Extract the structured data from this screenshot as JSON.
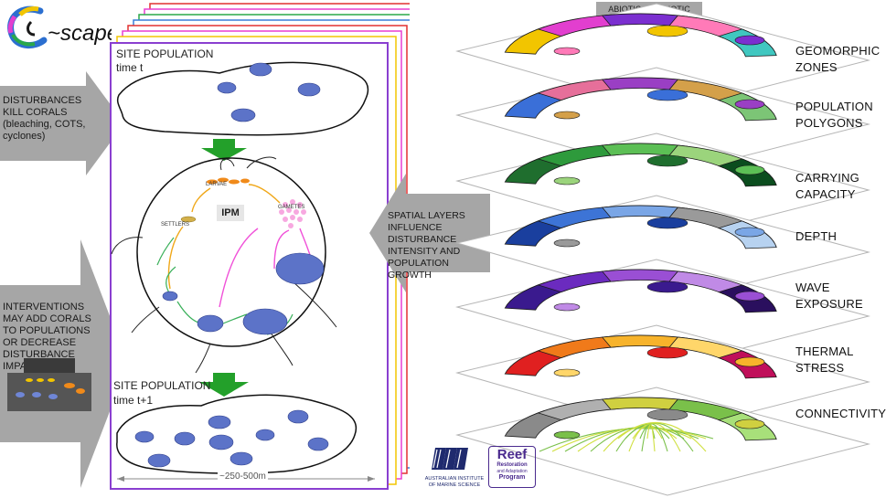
{
  "logo": {
    "text": "~scape"
  },
  "left_arrows": {
    "disturbances": "DISTURBANCES KILL CORALS (bleaching, COTS, cyclones)",
    "interventions": "INTERVENTIONS MAY ADD CORALS TO POPULATIONS OR DECREASE DISTURBANCE IMPACT"
  },
  "site_top": {
    "title": "SITE POPULATION",
    "time": "time t"
  },
  "site_bottom": {
    "title": "SITE POPULATION",
    "time": "time t+1"
  },
  "cycle": {
    "model": "IPM",
    "larvae": "LARVAE",
    "gametes": "GAMETES",
    "settlers": "SETTLERS"
  },
  "scale": {
    "label": "~250-500m"
  },
  "spatial_arrow": {
    "text": "SPATIAL LAYERS INFLUENCE DISTURBANCE INTENSITY AND POPULATION GROWTH"
  },
  "layers_header": {
    "text": "ABIOTIC AND BIOTIC SPATIAL LAYERS"
  },
  "layers": [
    {
      "line1": "GEOMORPHIC",
      "line2": "ZONES"
    },
    {
      "line1": "POPULATION",
      "line2": "POLYGONS"
    },
    {
      "line1": "CARRYING",
      "line2": "CAPACITY"
    },
    {
      "line1": "DEPTH",
      "line2": ""
    },
    {
      "line1": "WAVE",
      "line2": "EXPOSURE"
    },
    {
      "line1": "THERMAL",
      "line2": "STRESS"
    },
    {
      "line1": "CONNECTIVITY",
      "line2": ""
    }
  ],
  "layer_palettes": [
    [
      "#f2c500",
      "#e23fcf",
      "#7b2fd0",
      "#ff7ab8",
      "#40c7c0"
    ],
    [
      "#3a6fd8",
      "#e66f9a",
      "#9a3fc4",
      "#d4a04a",
      "#7cc576"
    ],
    [
      "#1f6e2e",
      "#2e9a3c",
      "#5cbf55",
      "#9bd47c",
      "#0b4d1e"
    ],
    [
      "#1a3f9e",
      "#3d74d6",
      "#7aa6e6",
      "#9a9a9a",
      "#b7d2f0"
    ],
    [
      "#3a1a8e",
      "#6b2bbf",
      "#9a4fd4",
      "#c08ae6",
      "#2a0f5e"
    ],
    [
      "#e02020",
      "#f07a1a",
      "#f7b32b",
      "#ffd66a",
      "#c00f5a"
    ],
    [
      "#8a8a8a",
      "#b0b0b0",
      "#d0d040",
      "#7ac04a",
      "#a8e07a"
    ]
  ],
  "stack_colors": [
    "#f2c500",
    "#e83fd2",
    "#e23030",
    "#3a7fd8",
    "#2aa84a",
    "#e83fd2",
    "#e23030"
  ],
  "logos": {
    "aims_line1": "AUSTRALIAN INSTITUTE",
    "aims_line2": "OF MARINE SCIENCE",
    "reef_title": "Reef",
    "reef_sub1": "Restoration",
    "reef_sub2": "and Adaptation",
    "reef_sub3": "Program"
  }
}
